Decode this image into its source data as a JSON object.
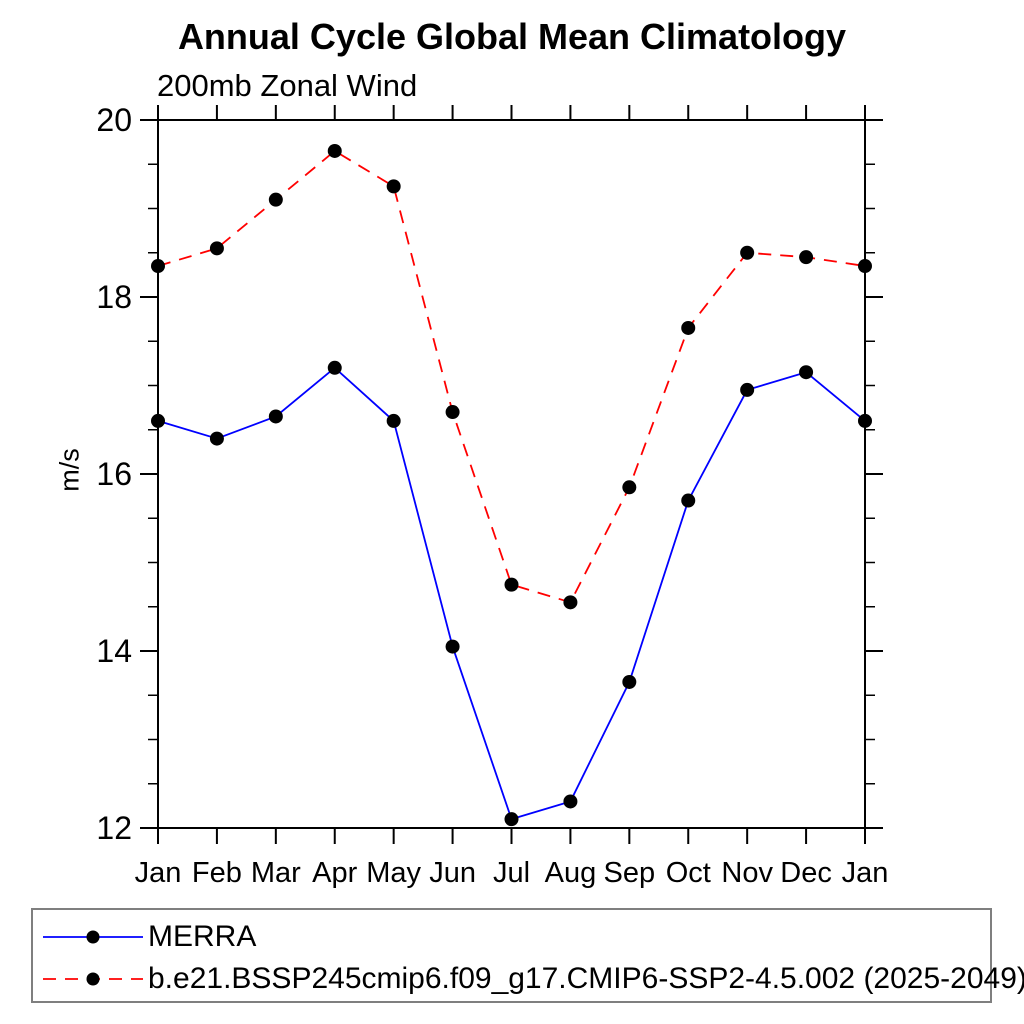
{
  "title": "Annual Cycle Global Mean Climatology",
  "subtitle": "200mb Zonal Wind",
  "chart_data": {
    "type": "line",
    "x_tick_labels": [
      "Jan",
      "Feb",
      "Mar",
      "Apr",
      "May",
      "Jun",
      "Jul",
      "Aug",
      "Sep",
      "Oct",
      "Nov",
      "Dec",
      "Jan"
    ],
    "xlabel": "",
    "ylabel": "m/s",
    "ylim": [
      12,
      20
    ],
    "y_major_ticks": [
      12,
      14,
      16,
      18,
      20
    ],
    "y_minor_step": 0.5,
    "grid": false,
    "legend_position": "bottom-left-box",
    "series": [
      {
        "name": "MERRA",
        "color": "#0000ff",
        "line_style": "solid",
        "marker": "black-dot",
        "values": [
          16.6,
          16.4,
          16.65,
          17.2,
          16.6,
          14.05,
          12.1,
          12.3,
          13.65,
          15.7,
          16.95,
          17.15,
          16.6
        ]
      },
      {
        "name": "b.e21.BSSP245cmip6.f09_g17.CMIP6-SSP2-4.5.002 (2025-2049)",
        "color": "#ff0000",
        "line_style": "dashed",
        "marker": "black-dot",
        "values": [
          18.35,
          18.55,
          19.1,
          19.65,
          19.25,
          16.7,
          14.75,
          14.55,
          15.85,
          17.65,
          18.5,
          18.45,
          18.35
        ]
      }
    ],
    "colors": {
      "axis": "#000000",
      "marker": "#000000",
      "legend_border": "#7f7f7f",
      "background": "#ffffff"
    }
  }
}
